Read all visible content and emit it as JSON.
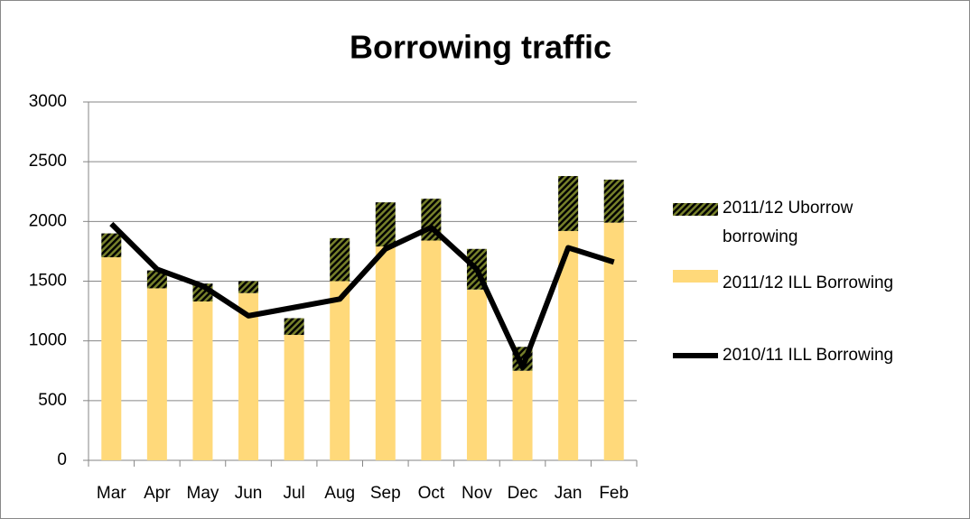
{
  "chart_data": {
    "type": "bar",
    "title": "Borrowing traffic",
    "categories": [
      "Mar",
      "Apr",
      "May",
      "Jun",
      "Jul",
      "Aug",
      "Sep",
      "Oct",
      "Nov",
      "Dec",
      "Jan",
      "Feb"
    ],
    "series": [
      {
        "name": "2011/12 ILL Borrowing",
        "type": "bar",
        "color": "#ffd97a",
        "values": [
          1700,
          1440,
          1330,
          1400,
          1050,
          1500,
          1790,
          1840,
          1430,
          750,
          1920,
          1990
        ]
      },
      {
        "name": "2011/12 Uborrow borrowing",
        "type": "bar",
        "color": "#76802a",
        "values": [
          200,
          150,
          150,
          100,
          140,
          360,
          370,
          350,
          340,
          200,
          460,
          360
        ]
      },
      {
        "name": "2010/11 ILL Borrowing",
        "type": "line",
        "color": "#000000",
        "values": [
          1980,
          1600,
          1460,
          1210,
          1280,
          1350,
          1770,
          1950,
          1600,
          780,
          1780,
          1660
        ]
      }
    ],
    "stacked": true,
    "ylim": [
      0,
      3000
    ],
    "yticks": [
      0,
      500,
      1000,
      1500,
      2000,
      2500,
      3000
    ],
    "grid": true,
    "legend": "right"
  }
}
